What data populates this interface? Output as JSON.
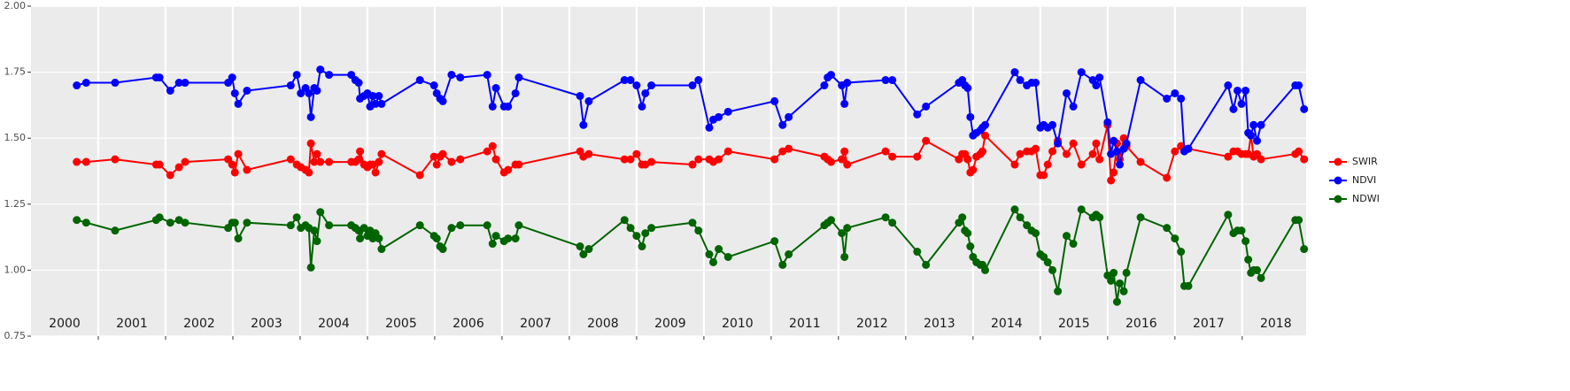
{
  "chart_data": {
    "type": "line",
    "x": [
      2000.68,
      2000.82,
      2001.25,
      2001.86,
      2001.91,
      2002.07,
      2002.2,
      2002.29,
      2002.93,
      2002.99,
      2003.03,
      2003.08,
      2003.21,
      2003.86,
      2003.95,
      2004.01,
      2004.08,
      2004.13,
      2004.16,
      2004.21,
      2004.25,
      2004.3,
      2004.43,
      2004.76,
      2004.82,
      2004.87,
      2004.89,
      2004.95,
      2005.0,
      2005.04,
      2005.08,
      2005.12,
      2005.17,
      2005.21,
      2005.78,
      2005.99,
      2006.03,
      2006.08,
      2006.12,
      2006.25,
      2006.38,
      2006.78,
      2006.86,
      2006.91,
      2007.03,
      2007.09,
      2007.2,
      2007.25,
      2008.16,
      2008.21,
      2008.29,
      2008.82,
      2008.91,
      2009.0,
      2009.08,
      2009.13,
      2009.22,
      2009.83,
      2009.92,
      2010.08,
      2010.14,
      2010.22,
      2010.36,
      2011.05,
      2011.17,
      2011.26,
      2011.79,
      2011.84,
      2011.89,
      2012.05,
      2012.09,
      2012.13,
      2012.7,
      2012.8,
      2013.17,
      2013.3,
      2013.79,
      2013.84,
      2013.88,
      2013.92,
      2013.96,
      2014.0,
      2014.05,
      2014.11,
      2014.14,
      2014.18,
      2014.62,
      2014.7,
      2014.8,
      2014.87,
      2014.93,
      2015.0,
      2015.05,
      2015.11,
      2015.18,
      2015.26,
      2015.39,
      2015.49,
      2015.61,
      2015.78,
      2015.83,
      2015.88,
      2016.0,
      2016.05,
      2016.09,
      2016.14,
      2016.18,
      2016.24,
      2016.28,
      2016.49,
      2016.88,
      2017.0,
      2017.09,
      2017.14,
      2017.2,
      2017.79,
      2017.87,
      2017.93,
      2017.99,
      2018.05,
      2018.09,
      2018.13,
      2018.17,
      2018.22,
      2018.28,
      2018.79,
      2018.84,
      2018.92
    ],
    "series": [
      {
        "name": "SWIR",
        "color": "#ff0000",
        "values": [
          1.41,
          1.41,
          1.42,
          1.4,
          1.4,
          1.36,
          1.39,
          1.41,
          1.42,
          1.4,
          1.37,
          1.44,
          1.38,
          1.42,
          1.4,
          1.39,
          1.38,
          1.37,
          1.48,
          1.41,
          1.44,
          1.41,
          1.41,
          1.41,
          1.41,
          1.42,
          1.45,
          1.4,
          1.39,
          1.4,
          1.4,
          1.37,
          1.41,
          1.44,
          1.36,
          1.43,
          1.4,
          1.43,
          1.44,
          1.41,
          1.42,
          1.45,
          1.47,
          1.42,
          1.37,
          1.38,
          1.4,
          1.4,
          1.45,
          1.43,
          1.44,
          1.42,
          1.42,
          1.44,
          1.4,
          1.4,
          1.41,
          1.4,
          1.42,
          1.42,
          1.41,
          1.42,
          1.45,
          1.42,
          1.45,
          1.46,
          1.43,
          1.42,
          1.41,
          1.42,
          1.45,
          1.4,
          1.45,
          1.43,
          1.43,
          1.49,
          1.42,
          1.44,
          1.44,
          1.42,
          1.37,
          1.38,
          1.43,
          1.44,
          1.45,
          1.51,
          1.4,
          1.44,
          1.45,
          1.45,
          1.46,
          1.36,
          1.36,
          1.4,
          1.45,
          1.49,
          1.44,
          1.48,
          1.4,
          1.44,
          1.48,
          1.42,
          1.55,
          1.34,
          1.37,
          1.48,
          1.42,
          1.5,
          1.47,
          1.41,
          1.35,
          1.45,
          1.47,
          1.46,
          1.46,
          1.43,
          1.45,
          1.45,
          1.44,
          1.44,
          1.44,
          1.51,
          1.43,
          1.44,
          1.42,
          1.44,
          1.45,
          1.42
        ]
      },
      {
        "name": "NDVI",
        "color": "#0000ff",
        "values": [
          1.7,
          1.71,
          1.71,
          1.73,
          1.73,
          1.68,
          1.71,
          1.71,
          1.71,
          1.73,
          1.67,
          1.63,
          1.68,
          1.7,
          1.74,
          1.67,
          1.69,
          1.67,
          1.58,
          1.69,
          1.68,
          1.76,
          1.74,
          1.74,
          1.72,
          1.71,
          1.65,
          1.66,
          1.67,
          1.62,
          1.66,
          1.63,
          1.66,
          1.63,
          1.72,
          1.7,
          1.67,
          1.65,
          1.64,
          1.74,
          1.73,
          1.74,
          1.62,
          1.69,
          1.62,
          1.62,
          1.67,
          1.73,
          1.66,
          1.55,
          1.64,
          1.72,
          1.72,
          1.7,
          1.62,
          1.67,
          1.7,
          1.7,
          1.72,
          1.54,
          1.57,
          1.58,
          1.6,
          1.64,
          1.55,
          1.58,
          1.7,
          1.73,
          1.74,
          1.7,
          1.63,
          1.71,
          1.72,
          1.72,
          1.59,
          1.62,
          1.71,
          1.72,
          1.7,
          1.69,
          1.58,
          1.51,
          1.52,
          1.53,
          1.54,
          1.55,
          1.75,
          1.72,
          1.7,
          1.71,
          1.71,
          1.54,
          1.55,
          1.54,
          1.55,
          1.48,
          1.67,
          1.62,
          1.75,
          1.72,
          1.7,
          1.73,
          1.56,
          1.44,
          1.49,
          1.45,
          1.4,
          1.46,
          1.48,
          1.72,
          1.65,
          1.67,
          1.65,
          1.45,
          1.46,
          1.7,
          1.61,
          1.68,
          1.63,
          1.68,
          1.52,
          1.51,
          1.55,
          1.49,
          1.55,
          1.7,
          1.7,
          1.61
        ]
      },
      {
        "name": "NDWI",
        "color": "#006400",
        "values": [
          1.19,
          1.18,
          1.15,
          1.19,
          1.2,
          1.18,
          1.19,
          1.18,
          1.16,
          1.18,
          1.18,
          1.12,
          1.18,
          1.17,
          1.2,
          1.16,
          1.17,
          1.16,
          1.01,
          1.15,
          1.11,
          1.22,
          1.17,
          1.17,
          1.16,
          1.15,
          1.12,
          1.16,
          1.13,
          1.15,
          1.12,
          1.14,
          1.12,
          1.08,
          1.17,
          1.13,
          1.12,
          1.09,
          1.08,
          1.16,
          1.17,
          1.17,
          1.1,
          1.13,
          1.11,
          1.12,
          1.12,
          1.17,
          1.09,
          1.06,
          1.08,
          1.19,
          1.16,
          1.13,
          1.09,
          1.14,
          1.16,
          1.18,
          1.15,
          1.06,
          1.03,
          1.08,
          1.05,
          1.11,
          1.02,
          1.06,
          1.17,
          1.18,
          1.19,
          1.14,
          1.05,
          1.16,
          1.2,
          1.18,
          1.07,
          1.02,
          1.18,
          1.2,
          1.15,
          1.14,
          1.09,
          1.05,
          1.03,
          1.02,
          1.02,
          1.0,
          1.23,
          1.2,
          1.17,
          1.15,
          1.14,
          1.06,
          1.05,
          1.03,
          1.0,
          0.92,
          1.13,
          1.1,
          1.23,
          1.2,
          1.21,
          1.2,
          0.98,
          0.96,
          0.99,
          0.88,
          0.95,
          0.92,
          0.99,
          1.2,
          1.16,
          1.12,
          1.07,
          0.94,
          0.94,
          1.21,
          1.14,
          1.15,
          1.15,
          1.11,
          1.04,
          0.99,
          1.0,
          1.0,
          0.97,
          1.19,
          1.19,
          1.08
        ]
      }
    ],
    "xlim": [
      2000,
      2018.95
    ],
    "xticks": [
      2001,
      2002,
      2003,
      2004,
      2005,
      2006,
      2007,
      2008,
      2009,
      2010,
      2011,
      2012,
      2013,
      2014,
      2015,
      2016,
      2017,
      2018
    ],
    "year_labels": [
      "2000",
      "2001",
      "2002",
      "2003",
      "2004",
      "2005",
      "2006",
      "2007",
      "2008",
      "2009",
      "2010",
      "2011",
      "2012",
      "2013",
      "2014",
      "2015",
      "2016",
      "2017",
      "2018"
    ],
    "ylim": [
      0.75,
      2.0
    ],
    "yticks": [
      0.75,
      {
        "value": 1.0,
        "label": "1.00"
      },
      1.25,
      {
        "value": 1.5,
        "label": "1.50"
      },
      1.75,
      {
        "value": 2.0,
        "label": "2.00"
      }
    ],
    "grid": true,
    "legend": "right"
  }
}
